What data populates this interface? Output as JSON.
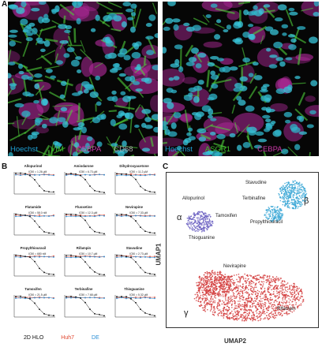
{
  "panels": {
    "A": "A",
    "B": "B",
    "C": "C"
  },
  "panel_a": {
    "left_labels": [
      {
        "text": "Hoechst",
        "color": "#1ea0d4"
      },
      {
        "text": "VIM",
        "color": "#3bbf2a"
      },
      {
        "text": "CEBPA",
        "color": "#c93aa6"
      },
      {
        "text": "CD68",
        "color": "#8a8a8a"
      }
    ],
    "right_labels": [
      {
        "text": "Hoechst",
        "color": "#1ea0d4"
      },
      {
        "text": "ASGR1",
        "color": "#3bbf2a"
      },
      {
        "text": "CEBPA",
        "color": "#c93aa6"
      }
    ]
  },
  "panel_b": {
    "ylabel": "Cell Viability",
    "xlabel": "Concentration (M)",
    "legend": [
      {
        "text": "2D HLO",
        "color": "#111111"
      },
      {
        "text": "Huh7",
        "color": "#e0452e"
      },
      {
        "text": "DE",
        "color": "#2a8fd6"
      }
    ],
    "drugs": [
      {
        "name": "Allopurinol",
        "ic50": "IC50 = 1.26 μM",
        "drop": 0.18
      },
      {
        "name": "Amiodarone",
        "ic50": "IC50 = 6.73 μM",
        "drop": 0.45
      },
      {
        "name": "Dihydroxyacetone",
        "ic50": "IC50 = 11.2 μM",
        "drop": 0.55
      },
      {
        "name": "Flutamide",
        "ic50": "IC50 = 58.0 nM",
        "drop": 0.22
      },
      {
        "name": "Fluoxetine",
        "ic50": "IC50 = 12.3 μM",
        "drop": 0.6
      },
      {
        "name": "Nevirapine",
        "ic50": "IC50 = 7.33 μM",
        "drop": 0.5
      },
      {
        "name": "Propylthiouracil",
        "ic50": "IC50 = 680 nM",
        "drop": 0.3
      },
      {
        "name": "Rifampin",
        "ic50": "IC50 = 10.7 μM",
        "drop": 0.55
      },
      {
        "name": "Stavudine",
        "ic50": "IC50 = 2.73 μM",
        "drop": 0.4
      },
      {
        "name": "Tamoxifen",
        "ic50": "IC50 = 21.5 μM",
        "drop": 0.65
      },
      {
        "name": "Terbinafine",
        "ic50": "IC50 = 7.68 μM",
        "drop": 0.48
      },
      {
        "name": "Thioguanine",
        "ic50": "IC50 = 5.32 μM",
        "drop": 0.42
      }
    ]
  },
  "panel_c": {
    "xlabel": "UMAP2",
    "ylabel": "UMAP1",
    "clusters": [
      {
        "greek": "α",
        "color": "#6a5fc1",
        "drugs": [
          "Allopurinol",
          "Tamoxifen",
          "Thioguanine"
        ]
      },
      {
        "greek": "β",
        "color": "#3aa7d6",
        "drugs": [
          "Stavudine",
          "Terbinafine",
          "Propylthiouracil"
        ]
      },
      {
        "greek": "γ",
        "color": "#d23a3a",
        "drugs": [
          "Nevirapine",
          "Rifampin"
        ]
      }
    ]
  }
}
